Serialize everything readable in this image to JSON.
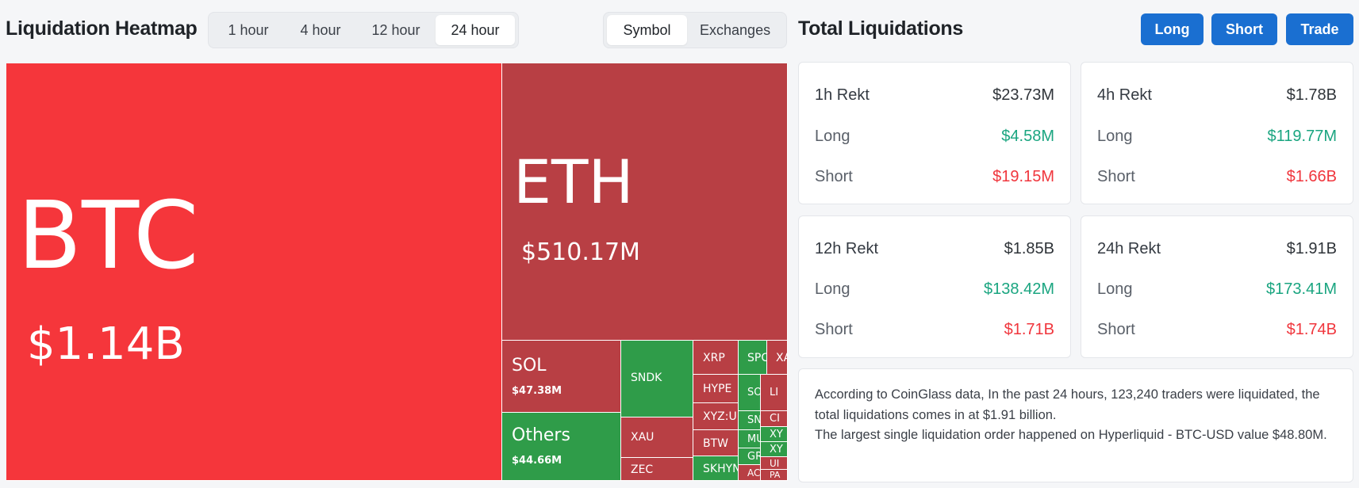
{
  "heatmap": {
    "title": "Liquidation Heatmap",
    "time_options": [
      "1 hour",
      "4 hour",
      "12 hour",
      "24 hour"
    ],
    "time_selected": "24 hour",
    "view_options": [
      "Symbol",
      "Exchanges"
    ],
    "view_selected": "Symbol",
    "cells": {
      "btc": {
        "symbol": "BTC",
        "value": "$1.14B"
      },
      "eth": {
        "symbol": "ETH",
        "value": "$510.17M"
      },
      "sol": {
        "symbol": "SOL",
        "value": "$47.38M"
      },
      "others": {
        "symbol": "Others",
        "value": "$44.66M"
      },
      "sndk": "SNDK",
      "xau": "XAU",
      "zec": "ZEC",
      "xrp": "XRP",
      "hype": "HYPE",
      "xyz": "XYZ:U",
      "btw": "BTW",
      "skhy": "SKHYN",
      "spc": "SPC",
      "xa": "XA",
      "so": "SO",
      "li": "LI",
      "sn": "SN",
      "ci": "CI",
      "mu": "MU",
      "xy1": "XY",
      "gr": "GR",
      "xy2": "XY",
      "ac": "AC",
      "ui": "UI",
      "pa": "PA"
    }
  },
  "totals": {
    "title": "Total Liquidations",
    "buttons": {
      "long": "Long",
      "short": "Short",
      "trade": "Trade"
    },
    "cards": [
      {
        "label": "1h Rekt",
        "total": "$23.73M",
        "long_label": "Long",
        "long": "$4.58M",
        "short_label": "Short",
        "short": "$19.15M"
      },
      {
        "label": "4h Rekt",
        "total": "$1.78B",
        "long_label": "Long",
        "long": "$119.77M",
        "short_label": "Short",
        "short": "$1.66B"
      },
      {
        "label": "12h Rekt",
        "total": "$1.85B",
        "long_label": "Long",
        "long": "$138.42M",
        "short_label": "Short",
        "short": "$1.71B"
      },
      {
        "label": "24h Rekt",
        "total": "$1.91B",
        "long_label": "Long",
        "long": "$173.41M",
        "short_label": "Short",
        "short": "$1.74B"
      }
    ],
    "summary_line1": "According to CoinGlass data, In the past 24 hours, 123,240 traders were liquidated, the total liquidations comes in at $1.91 billion.",
    "summary_line2": "The largest single liquidation order happened on Hyperliquid - BTC-USD value $48.80M."
  },
  "colors": {
    "accent": "#1a6fd1",
    "long": "#1aa580",
    "short": "#f0363d",
    "heat_red": "#b83f44",
    "heat_bright": "#f5363b",
    "heat_green": "#2f9c49"
  }
}
